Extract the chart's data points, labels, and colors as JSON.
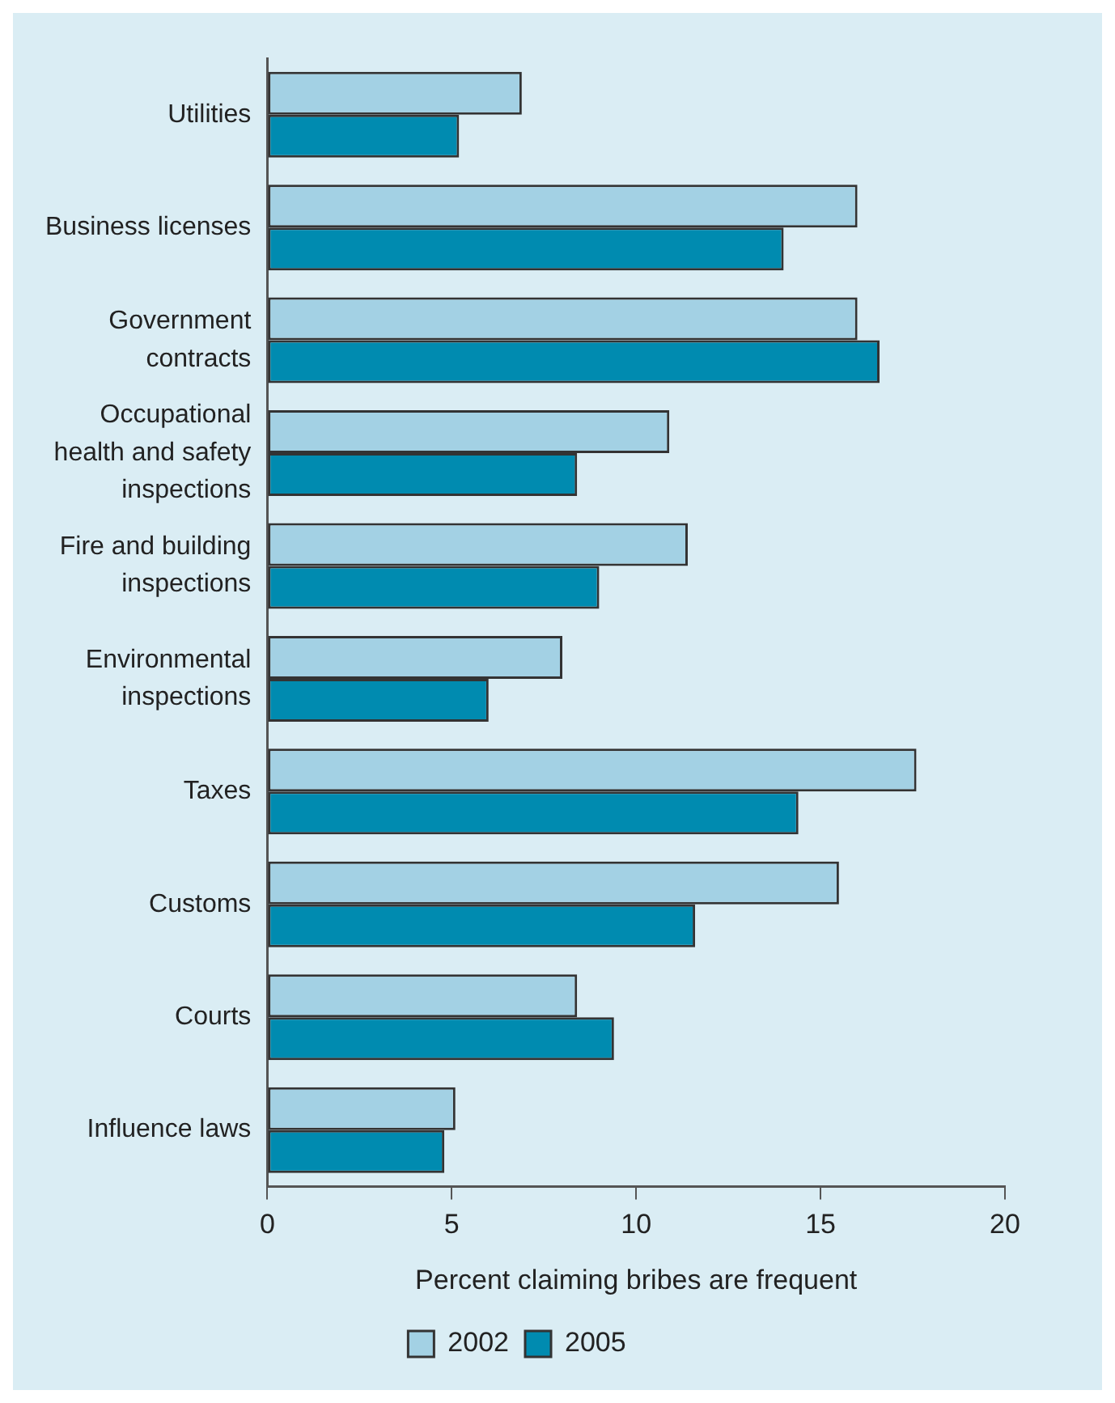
{
  "chart_data": {
    "type": "bar",
    "orientation": "horizontal",
    "xlabel": "Percent claiming bribes are frequent",
    "categories": [
      "Utilities",
      "Business licenses",
      "Government contracts",
      "Occupational health and safety inspections",
      "Fire and building inspections",
      "Environmental inspections",
      "Taxes",
      "Customs",
      "Courts",
      "Influence laws"
    ],
    "series": [
      {
        "name": "2002",
        "color": "#a3d1e4",
        "values": [
          6.9,
          16.0,
          16.0,
          10.9,
          11.4,
          8.0,
          17.6,
          15.5,
          8.4,
          5.1
        ]
      },
      {
        "name": "2005",
        "color": "#008bb0",
        "values": [
          5.2,
          14.0,
          16.6,
          8.4,
          9.0,
          6.0,
          14.4,
          11.6,
          9.4,
          4.8
        ]
      }
    ],
    "xlim": [
      0,
      20
    ],
    "xticks": [
      0,
      5,
      10,
      15,
      20
    ],
    "legend": "bottom"
  }
}
